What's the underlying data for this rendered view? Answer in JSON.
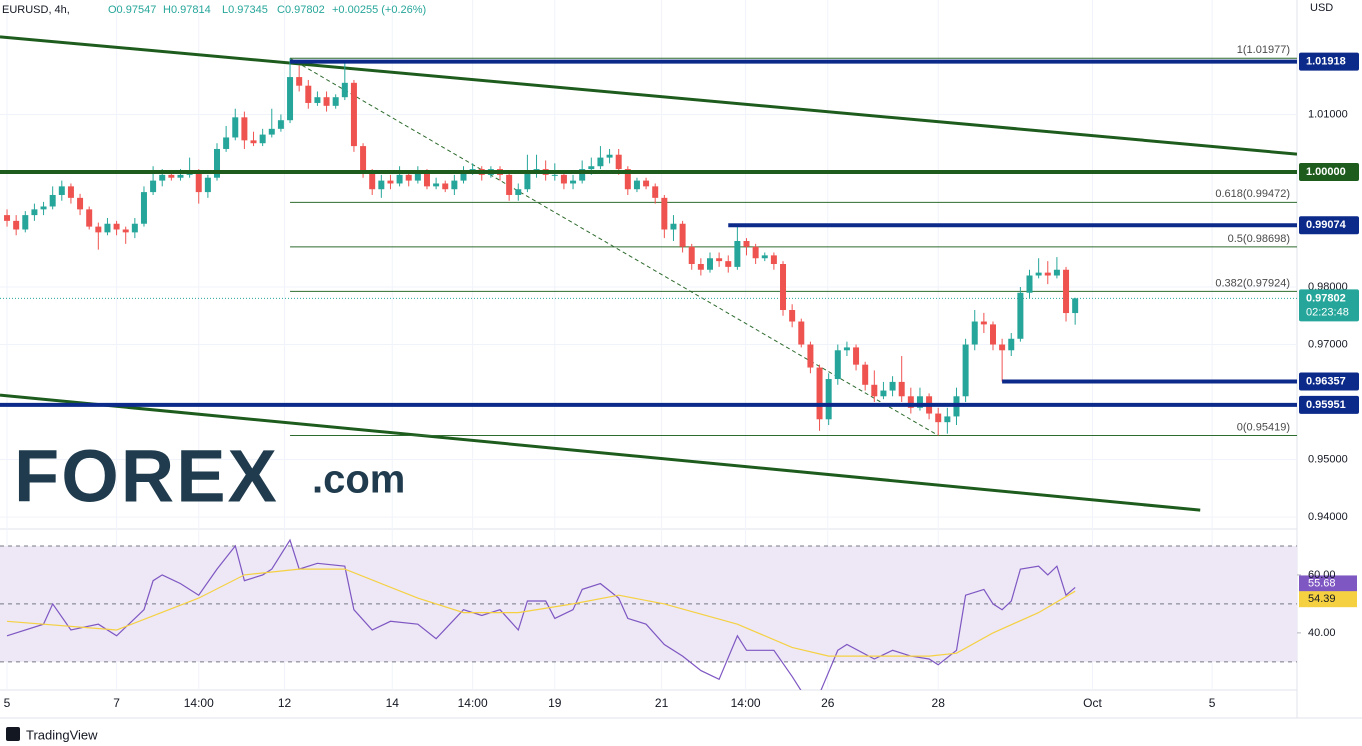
{
  "chart_data": [
    {
      "type": "candlestick",
      "symbol": "EURUSD, 4h,",
      "ohlc_texts": [
        "O0.97547",
        "H0.97814",
        "L0.97345",
        "C0.97802",
        "+0.00255 (+0.26%)"
      ],
      "currency": "USD",
      "up_color": "#26a69a",
      "down_color": "#ef5350",
      "xlim": [
        -0.77,
        141.3
      ],
      "ylim": [
        0.9381,
        1.0299
      ],
      "yticks": [
        {
          "value": 0.94,
          "label": "0.94000"
        },
        {
          "value": 0.95,
          "label": "0.95000"
        },
        {
          "value": 0.97,
          "label": "0.97000"
        },
        {
          "value": 0.98,
          "label": "0.98000"
        },
        {
          "value": 1.01,
          "label": "1.01000"
        }
      ],
      "grid": true,
      "candles": [
        [
          0.9925,
          0.9935,
          0.9905,
          0.9915
        ],
        [
          0.9915,
          0.9925,
          0.989,
          0.99
        ],
        [
          0.99,
          0.9932,
          0.9895,
          0.9925
        ],
        [
          0.9925,
          0.9945,
          0.9915,
          0.9935
        ],
        [
          0.9935,
          0.9948,
          0.9925,
          0.994
        ],
        [
          0.994,
          0.9975,
          0.9935,
          0.996
        ],
        [
          0.996,
          0.9985,
          0.995,
          0.9975
        ],
        [
          0.9975,
          0.998,
          0.9945,
          0.9955
        ],
        [
          0.9955,
          0.9962,
          0.9925,
          0.9935
        ],
        [
          0.9935,
          0.994,
          0.99,
          0.9905
        ],
        [
          0.9905,
          0.9912,
          0.9865,
          0.9895
        ],
        [
          0.9895,
          0.992,
          0.989,
          0.991
        ],
        [
          0.991,
          0.9915,
          0.989,
          0.99
        ],
        [
          0.99,
          0.9905,
          0.9875,
          0.9895
        ],
        [
          0.9895,
          0.992,
          0.9885,
          0.991
        ],
        [
          0.991,
          0.9975,
          0.9905,
          0.9965
        ],
        [
          0.9965,
          1.001,
          0.996,
          0.9985
        ],
        [
          0.9985,
          1.0005,
          0.9975,
          0.9995
        ],
        [
          0.9995,
          1.0,
          0.9985,
          0.999
        ],
        [
          0.999,
          1.0005,
          0.9985,
          0.9995
        ],
        [
          0.9995,
          1.0025,
          0.999,
          1.0
        ],
        [
          1.0,
          1.0005,
          0.9945,
          0.9965
        ],
        [
          0.9965,
          0.9995,
          0.9955,
          0.999
        ],
        [
          0.999,
          1.005,
          0.9985,
          1.004
        ],
        [
          1.004,
          1.008,
          1.0035,
          1.006
        ],
        [
          1.006,
          1.011,
          1.0055,
          1.0095
        ],
        [
          1.0095,
          1.0105,
          1.004,
          1.0055
        ],
        [
          1.0055,
          1.007,
          1.0045,
          1.005
        ],
        [
          1.005,
          1.0075,
          1.0045,
          1.0065
        ],
        [
          1.0065,
          1.011,
          1.006,
          1.0075
        ],
        [
          1.0075,
          1.01,
          1.007,
          1.009
        ],
        [
          1.009,
          1.01977,
          1.0085,
          1.0165
        ],
        [
          1.0165,
          1.0185,
          1.014,
          1.015
        ],
        [
          1.015,
          1.016,
          1.011,
          1.012
        ],
        [
          1.012,
          1.014,
          1.0115,
          1.013
        ],
        [
          1.013,
          1.014,
          1.0105,
          1.0115
        ],
        [
          1.0115,
          1.0135,
          1.011,
          1.013
        ],
        [
          1.013,
          1.019,
          1.0125,
          1.0155
        ],
        [
          1.0155,
          1.016,
          1.0035,
          1.0045
        ],
        [
          1.0045,
          1.005,
          0.999,
          1.0
        ],
        [
          1.0,
          1.0005,
          0.996,
          0.997
        ],
        [
          0.997,
          0.9995,
          0.9955,
          0.9985
        ],
        [
          0.9985,
          0.9995,
          0.997,
          0.998
        ],
        [
          0.998,
          1.001,
          0.9975,
          0.9995
        ],
        [
          0.9995,
          1.0,
          0.9975,
          0.9985
        ],
        [
          0.9985,
          1.001,
          0.998,
          1.0
        ],
        [
          1.0,
          1.0005,
          0.997,
          0.9975
        ],
        [
          0.9975,
          0.999,
          0.997,
          0.998
        ],
        [
          0.998,
          0.9985,
          0.9965,
          0.997
        ],
        [
          0.997,
          0.9995,
          0.996,
          0.9985
        ],
        [
          0.9985,
          1.001,
          0.998,
          1.0
        ],
        [
          1.0,
          1.0015,
          0.9995,
          1.0005
        ],
        [
          1.0005,
          1.001,
          0.9985,
          0.9995
        ],
        [
          0.9995,
          1.001,
          0.999,
          1.0005
        ],
        [
          1.0005,
          1.001,
          0.9985,
          0.9995
        ],
        [
          0.9995,
          1.0,
          0.995,
          0.996
        ],
        [
          0.996,
          0.998,
          0.995,
          0.997
        ],
        [
          0.997,
          1.003,
          0.9965,
          1.0
        ],
        [
          1.0,
          1.003,
          0.999,
          1.0005
        ],
        [
          1.0005,
          1.002,
          0.9985,
          0.9995
        ],
        [
          0.9995,
          1.0015,
          0.9985,
          0.9995
        ],
        [
          0.9995,
          1.0,
          0.997,
          0.998
        ],
        [
          0.998,
          0.9995,
          0.997,
          0.9985
        ],
        [
          0.9985,
          1.002,
          0.998,
          1.0005
        ],
        [
          1.0005,
          1.0025,
          0.9995,
          1.001
        ],
        [
          1.001,
          1.0045,
          1.0005,
          1.0025
        ],
        [
          1.0025,
          1.004,
          1.0015,
          1.003
        ],
        [
          1.003,
          1.004,
          0.9995,
          1.0005
        ],
        [
          1.0005,
          1.001,
          0.996,
          0.997
        ],
        [
          0.997,
          0.999,
          0.9965,
          0.9985
        ],
        [
          0.9985,
          0.999,
          0.997,
          0.9975
        ],
        [
          0.9975,
          0.998,
          0.9945,
          0.9955
        ],
        [
          0.9955,
          0.996,
          0.9885,
          0.99
        ],
        [
          0.99,
          0.9925,
          0.988,
          0.991
        ],
        [
          0.991,
          0.9915,
          0.986,
          0.987
        ],
        [
          0.987,
          0.9875,
          0.983,
          0.984
        ],
        [
          0.984,
          0.985,
          0.982,
          0.983
        ],
        [
          0.983,
          0.986,
          0.9825,
          0.985
        ],
        [
          0.985,
          0.986,
          0.9835,
          0.9845
        ],
        [
          0.9845,
          0.9855,
          0.9825,
          0.9835
        ],
        [
          0.9835,
          0.9907,
          0.983,
          0.988
        ],
        [
          0.988,
          0.9885,
          0.9855,
          0.987
        ],
        [
          0.987,
          0.9875,
          0.984,
          0.985
        ],
        [
          0.985,
          0.986,
          0.9845,
          0.9855
        ],
        [
          0.9855,
          0.986,
          0.983,
          0.984
        ],
        [
          0.984,
          0.9845,
          0.975,
          0.976
        ],
        [
          0.976,
          0.977,
          0.973,
          0.974
        ],
        [
          0.974,
          0.9745,
          0.9695,
          0.97
        ],
        [
          0.97,
          0.9705,
          0.965,
          0.966
        ],
        [
          0.966,
          0.9665,
          0.955,
          0.957
        ],
        [
          0.957,
          0.965,
          0.956,
          0.964
        ],
        [
          0.964,
          0.97,
          0.963,
          0.969
        ],
        [
          0.969,
          0.9705,
          0.968,
          0.9695
        ],
        [
          0.9695,
          0.97,
          0.9655,
          0.9665
        ],
        [
          0.9665,
          0.967,
          0.962,
          0.963
        ],
        [
          0.963,
          0.9655,
          0.96,
          0.961
        ],
        [
          0.961,
          0.9635,
          0.9605,
          0.962
        ],
        [
          0.962,
          0.9645,
          0.961,
          0.9635
        ],
        [
          0.9635,
          0.968,
          0.96,
          0.961
        ],
        [
          0.961,
          0.9625,
          0.958,
          0.959
        ],
        [
          0.959,
          0.9625,
          0.9585,
          0.961
        ],
        [
          0.961,
          0.9615,
          0.957,
          0.958
        ],
        [
          0.958,
          0.959,
          0.95419,
          0.9565
        ],
        [
          0.9565,
          0.959,
          0.9545,
          0.9575
        ],
        [
          0.9575,
          0.9625,
          0.956,
          0.961
        ],
        [
          0.961,
          0.971,
          0.96,
          0.97
        ],
        [
          0.97,
          0.976,
          0.969,
          0.974
        ],
        [
          0.974,
          0.9755,
          0.972,
          0.9735
        ],
        [
          0.9735,
          0.974,
          0.969,
          0.97
        ],
        [
          0.97,
          0.971,
          0.96357,
          0.969
        ],
        [
          0.969,
          0.972,
          0.968,
          0.971
        ],
        [
          0.971,
          0.98,
          0.9705,
          0.979
        ],
        [
          0.979,
          0.983,
          0.978,
          0.982
        ],
        [
          0.982,
          0.985,
          0.9815,
          0.9825
        ],
        [
          0.9825,
          0.9845,
          0.9805,
          0.982
        ],
        [
          0.982,
          0.9852,
          0.9815,
          0.983
        ],
        [
          0.983,
          0.9835,
          0.974,
          0.97547
        ],
        [
          0.97547,
          0.97814,
          0.97345,
          0.97802
        ]
      ],
      "levels": [
        {
          "value": 1.01918,
          "color": "#0c2a8a",
          "x_start": 31
        },
        {
          "value": 1,
          "label": "1.00000",
          "color": "#1e5c1e"
        },
        {
          "value": 0.99074,
          "color": "#0c2a8a",
          "x_start": 79
        },
        {
          "value": 0.96357,
          "color": "#0c2a8a",
          "x_start": 109
        },
        {
          "value": 0.95951,
          "color": "#0c2a8a"
        }
      ],
      "fib": {
        "x_start": 31,
        "color": "#2e6b2e",
        "levels": [
          {
            "value": 1.01977,
            "label": "1(1.01977)"
          },
          {
            "value": 0.99472,
            "label": "0.618(0.99472)"
          },
          {
            "value": 0.98698,
            "label": "0.5(0.98698)"
          },
          {
            "value": 0.97924,
            "label": "0.382(0.97924)"
          },
          {
            "value": 0.95419,
            "label": "0(0.95419)"
          }
        ]
      },
      "fib_trend": {
        "x": [
          31,
          102
        ],
        "values": [
          1.01977,
          0.95419
        ]
      },
      "trend_color": "#1e5c1e",
      "trendlines": [
        {
          "x": [
            -0.77,
            141.3
          ],
          "values": [
            1.0235,
            1.0031
          ]
        },
        {
          "x": [
            -0.77,
            130.7
          ],
          "values": [
            0.9612,
            0.9412
          ]
        }
      ],
      "last_price": 0.97802,
      "countdown": "02:23:48",
      "last_color": "#26a69a",
      "logo": {
        "main": "FOREX",
        "suffix": ".com"
      }
    },
    {
      "type": "line",
      "xlim": [
        -0.77,
        141.3
      ],
      "ylim": [
        20.3,
        75.5
      ],
      "yticks": [
        {
          "value": 60,
          "label": "60.00"
        },
        {
          "value": 40,
          "label": "40.00"
        }
      ],
      "bands": [
        70,
        50,
        30
      ],
      "band_fill": "#ede7f6",
      "xticks": [
        {
          "value": 0,
          "label": "5"
        },
        {
          "value": 12,
          "label": "7"
        },
        {
          "value": 21,
          "label": "14:00"
        },
        {
          "value": 30.4,
          "label": "12"
        },
        {
          "value": 42.2,
          "label": "14"
        },
        {
          "value": 51,
          "label": "14:00"
        },
        {
          "value": 60,
          "label": "19"
        },
        {
          "value": 71.7,
          "label": "21"
        },
        {
          "value": 80.9,
          "label": "14:00"
        },
        {
          "value": 89.9,
          "label": "26"
        },
        {
          "value": 102,
          "label": "28"
        },
        {
          "value": 118.9,
          "label": "Oct"
        },
        {
          "value": 132,
          "label": "5"
        }
      ],
      "lines": [
        {
          "color": "#7e57c2",
          "tag_text": "#ffffff",
          "x": [
            0,
            4,
            5,
            7,
            10,
            12,
            15,
            16,
            17,
            19,
            21,
            23,
            25,
            26,
            28,
            29,
            31,
            32,
            34,
            37,
            38,
            40,
            42,
            45,
            47,
            50,
            52,
            54,
            56,
            57,
            59,
            60,
            62,
            63,
            65,
            67,
            68,
            70,
            72,
            74,
            76,
            78,
            80,
            81,
            84,
            86,
            87,
            89,
            91,
            92,
            95,
            97,
            99,
            101,
            102,
            104,
            105,
            107,
            108,
            109,
            110,
            111,
            113,
            114,
            115,
            116,
            117
          ],
          "values": [
            39,
            43,
            50,
            41,
            43,
            39,
            48,
            58,
            60,
            57,
            53,
            62,
            70,
            58,
            60,
            62,
            72,
            62,
            64,
            63,
            48,
            41,
            44,
            43,
            38,
            48,
            46,
            48,
            41,
            51,
            51,
            45,
            48,
            55,
            57,
            52,
            45,
            43,
            36,
            32,
            27,
            24,
            39,
            34,
            34,
            25,
            20,
            19,
            34,
            36,
            31,
            34,
            32,
            31,
            29,
            34,
            53,
            55,
            50,
            48,
            51,
            62,
            63,
            60,
            63,
            53,
            55.68
          ]
        },
        {
          "color": "#f5d142",
          "tag_text": "#131722",
          "x": [
            0,
            12,
            21,
            26,
            32,
            37,
            45,
            50,
            56,
            62,
            67,
            72,
            80,
            86,
            90,
            101,
            104,
            108,
            113,
            117
          ],
          "values": [
            44,
            41,
            52,
            60,
            62,
            62,
            52,
            47,
            47,
            50,
            53,
            50,
            43,
            35,
            32,
            32,
            33,
            40,
            47,
            54.39
          ]
        }
      ]
    }
  ],
  "footer": "TradingView"
}
